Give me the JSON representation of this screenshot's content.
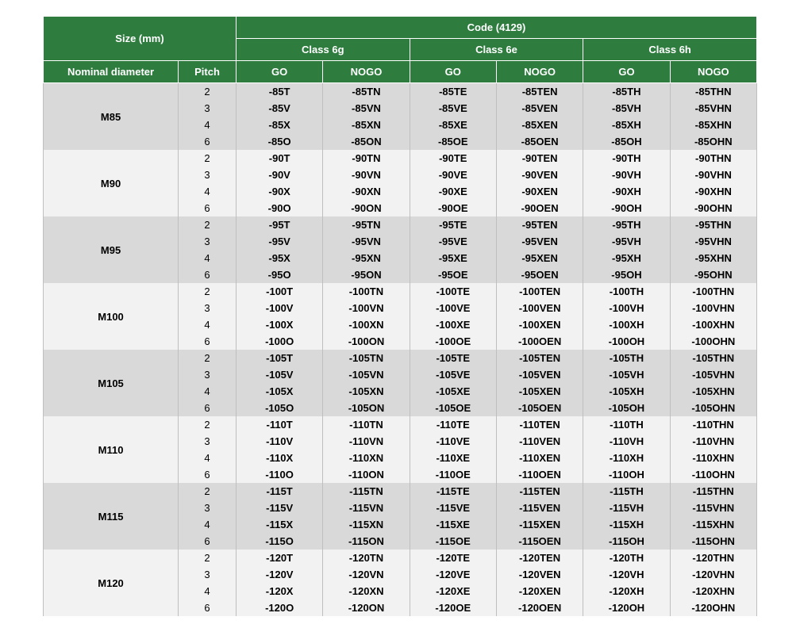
{
  "header": {
    "size_label": "Size (mm)",
    "code_label": "Code (4129)",
    "nominal_label": "Nominal diameter",
    "pitch_label": "Pitch",
    "classes": [
      "Class 6g",
      "Class 6e",
      "Class 6h"
    ],
    "go_label": "GO",
    "nogo_label": "NOGO"
  },
  "colors": {
    "header_bg": "#2e7d3f",
    "header_fg": "#ffffff",
    "shade_dark": "#d9d9d9",
    "shade_light": "#f2f2f2",
    "border": "#bfbfbf"
  },
  "groups": [
    {
      "nominal": "M85",
      "shade": "dark",
      "rows": [
        {
          "pitch": "2",
          "c": [
            "-85T",
            "-85TN",
            "-85TE",
            "-85TEN",
            "-85TH",
            "-85THN"
          ]
        },
        {
          "pitch": "3",
          "c": [
            "-85V",
            "-85VN",
            "-85VE",
            "-85VEN",
            "-85VH",
            "-85VHN"
          ]
        },
        {
          "pitch": "4",
          "c": [
            "-85X",
            "-85XN",
            "-85XE",
            "-85XEN",
            "-85XH",
            "-85XHN"
          ]
        },
        {
          "pitch": "6",
          "c": [
            "-85O",
            "-85ON",
            "-85OE",
            "-85OEN",
            "-85OH",
            "-85OHN"
          ]
        }
      ]
    },
    {
      "nominal": "M90",
      "shade": "light",
      "rows": [
        {
          "pitch": "2",
          "c": [
            "-90T",
            "-90TN",
            "-90TE",
            "-90TEN",
            "-90TH",
            "-90THN"
          ]
        },
        {
          "pitch": "3",
          "c": [
            "-90V",
            "-90VN",
            "-90VE",
            "-90VEN",
            "-90VH",
            "-90VHN"
          ]
        },
        {
          "pitch": "4",
          "c": [
            "-90X",
            "-90XN",
            "-90XE",
            "-90XEN",
            "-90XH",
            "-90XHN"
          ]
        },
        {
          "pitch": "6",
          "c": [
            "-90O",
            "-90ON",
            "-90OE",
            "-90OEN",
            "-90OH",
            "-90OHN"
          ]
        }
      ]
    },
    {
      "nominal": "M95",
      "shade": "dark",
      "rows": [
        {
          "pitch": "2",
          "c": [
            "-95T",
            "-95TN",
            "-95TE",
            "-95TEN",
            "-95TH",
            "-95THN"
          ]
        },
        {
          "pitch": "3",
          "c": [
            "-95V",
            "-95VN",
            "-95VE",
            "-95VEN",
            "-95VH",
            "-95VHN"
          ]
        },
        {
          "pitch": "4",
          "c": [
            "-95X",
            "-95XN",
            "-95XE",
            "-95XEN",
            "-95XH",
            "-95XHN"
          ]
        },
        {
          "pitch": "6",
          "c": [
            "-95O",
            "-95ON",
            "-95OE",
            "-95OEN",
            "-95OH",
            "-95OHN"
          ]
        }
      ]
    },
    {
      "nominal": "M100",
      "shade": "light",
      "rows": [
        {
          "pitch": "2",
          "c": [
            "-100T",
            "-100TN",
            "-100TE",
            "-100TEN",
            "-100TH",
            "-100THN"
          ]
        },
        {
          "pitch": "3",
          "c": [
            "-100V",
            "-100VN",
            "-100VE",
            "-100VEN",
            "-100VH",
            "-100VHN"
          ]
        },
        {
          "pitch": "4",
          "c": [
            "-100X",
            "-100XN",
            "-100XE",
            "-100XEN",
            "-100XH",
            "-100XHN"
          ]
        },
        {
          "pitch": "6",
          "c": [
            "-100O",
            "-100ON",
            "-100OE",
            "-100OEN",
            "-100OH",
            "-100OHN"
          ]
        }
      ]
    },
    {
      "nominal": "M105",
      "shade": "dark",
      "rows": [
        {
          "pitch": "2",
          "c": [
            "-105T",
            "-105TN",
            "-105TE",
            "-105TEN",
            "-105TH",
            "-105THN"
          ]
        },
        {
          "pitch": "3",
          "c": [
            "-105V",
            "-105VN",
            "-105VE",
            "-105VEN",
            "-105VH",
            "-105VHN"
          ]
        },
        {
          "pitch": "4",
          "c": [
            "-105X",
            "-105XN",
            "-105XE",
            "-105XEN",
            "-105XH",
            "-105XHN"
          ]
        },
        {
          "pitch": "6",
          "c": [
            "-105O",
            "-105ON",
            "-105OE",
            "-105OEN",
            "-105OH",
            "-105OHN"
          ]
        }
      ]
    },
    {
      "nominal": "M110",
      "shade": "light",
      "rows": [
        {
          "pitch": "2",
          "c": [
            "-110T",
            "-110TN",
            "-110TE",
            "-110TEN",
            "-110TH",
            "-110THN"
          ]
        },
        {
          "pitch": "3",
          "c": [
            "-110V",
            "-110VN",
            "-110VE",
            "-110VEN",
            "-110VH",
            "-110VHN"
          ]
        },
        {
          "pitch": "4",
          "c": [
            "-110X",
            "-110XN",
            "-110XE",
            "-110XEN",
            "-110XH",
            "-110XHN"
          ]
        },
        {
          "pitch": "6",
          "c": [
            "-110O",
            "-110ON",
            "-110OE",
            "-110OEN",
            "-110OH",
            "-110OHN"
          ]
        }
      ]
    },
    {
      "nominal": "M115",
      "shade": "dark",
      "rows": [
        {
          "pitch": "2",
          "c": [
            "-115T",
            "-115TN",
            "-115TE",
            "-115TEN",
            "-115TH",
            "-115THN"
          ]
        },
        {
          "pitch": "3",
          "c": [
            "-115V",
            "-115VN",
            "-115VE",
            "-115VEN",
            "-115VH",
            "-115VHN"
          ]
        },
        {
          "pitch": "4",
          "c": [
            "-115X",
            "-115XN",
            "-115XE",
            "-115XEN",
            "-115XH",
            "-115XHN"
          ]
        },
        {
          "pitch": "6",
          "c": [
            "-115O",
            "-115ON",
            "-115OE",
            "-115OEN",
            "-115OH",
            "-115OHN"
          ]
        }
      ]
    },
    {
      "nominal": "M120",
      "shade": "light",
      "rows": [
        {
          "pitch": "2",
          "c": [
            "-120T",
            "-120TN",
            "-120TE",
            "-120TEN",
            "-120TH",
            "-120THN"
          ]
        },
        {
          "pitch": "3",
          "c": [
            "-120V",
            "-120VN",
            "-120VE",
            "-120VEN",
            "-120VH",
            "-120VHN"
          ]
        },
        {
          "pitch": "4",
          "c": [
            "-120X",
            "-120XN",
            "-120XE",
            "-120XEN",
            "-120XH",
            "-120XHN"
          ]
        },
        {
          "pitch": "6",
          "c": [
            "-120O",
            "-120ON",
            "-120OE",
            "-120OEN",
            "-120OH",
            "-120OHN"
          ]
        }
      ]
    }
  ]
}
